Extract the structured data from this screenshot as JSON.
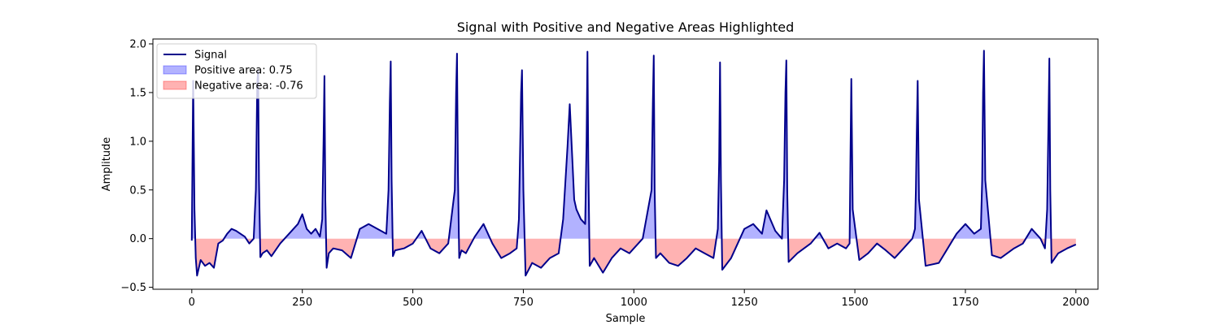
{
  "chart_data": {
    "type": "line",
    "title": "Signal with Positive and Negative Areas Highlighted",
    "xlabel": "Sample",
    "ylabel": "Amplitude",
    "xlim": [
      -88,
      2050
    ],
    "ylim": [
      -0.52,
      2.05
    ],
    "xticks": [
      0,
      250,
      500,
      750,
      1000,
      1250,
      1500,
      1750,
      2000
    ],
    "yticks": [
      -0.5,
      0.0,
      0.5,
      1.0,
      1.5,
      2.0
    ],
    "xtick_labels": [
      "0",
      "250",
      "500",
      "750",
      "1000",
      "1250",
      "1500",
      "1750",
      "2000"
    ],
    "ytick_labels": [
      "−0.5",
      "0.0",
      "0.5",
      "1.0",
      "1.5",
      "2.0"
    ],
    "grid": false,
    "legend_position": "top-left",
    "legend": [
      {
        "label": "Signal",
        "kind": "line",
        "color": "#00008b"
      },
      {
        "label": "Positive area: 0.75",
        "kind": "patch",
        "color": "#0000ff"
      },
      {
        "label": "Negative area: -0.76",
        "kind": "patch",
        "color": "#ff0000"
      }
    ],
    "series": [
      {
        "name": "Signal",
        "color": "#00008b",
        "x": [
          0,
          3,
          6,
          9,
          12,
          20,
          30,
          40,
          50,
          60,
          70,
          80,
          90,
          100,
          110,
          120,
          130,
          140,
          145,
          148,
          150,
          152,
          155,
          160,
          170,
          180,
          200,
          220,
          240,
          250,
          260,
          270,
          280,
          290,
          295,
          298,
          300,
          302,
          305,
          310,
          320,
          340,
          360,
          380,
          400,
          420,
          440,
          445,
          448,
          450,
          452,
          455,
          460,
          480,
          500,
          520,
          540,
          560,
          580,
          595,
          598,
          600,
          602,
          605,
          610,
          620,
          640,
          660,
          680,
          700,
          720,
          735,
          740,
          745,
          747,
          750,
          755,
          770,
          790,
          810,
          830,
          840,
          850,
          855,
          860,
          865,
          870,
          880,
          890,
          893,
          895,
          897,
          900,
          910,
          930,
          950,
          970,
          990,
          1000,
          1020,
          1040,
          1043,
          1045,
          1047,
          1050,
          1060,
          1080,
          1100,
          1120,
          1140,
          1160,
          1180,
          1190,
          1193,
          1195,
          1197,
          1200,
          1220,
          1250,
          1270,
          1290,
          1300,
          1320,
          1335,
          1340,
          1343,
          1345,
          1347,
          1350,
          1370,
          1400,
          1420,
          1440,
          1460,
          1480,
          1488,
          1490,
          1492,
          1495,
          1510,
          1530,
          1550,
          1570,
          1590,
          1610,
          1630,
          1636,
          1638,
          1640,
          1642,
          1645,
          1660,
          1690,
          1710,
          1730,
          1750,
          1770,
          1785,
          1788,
          1790,
          1792,
          1795,
          1810,
          1830,
          1860,
          1880,
          1900,
          1920,
          1930,
          1935,
          1938,
          1940,
          1942,
          1945,
          1960,
          1980,
          2000
        ],
        "y": [
          -0.02,
          1.62,
          0.3,
          -0.2,
          -0.38,
          -0.22,
          -0.28,
          -0.25,
          -0.3,
          -0.05,
          -0.02,
          0.05,
          0.1,
          0.08,
          0.05,
          0.02,
          -0.05,
          0.0,
          0.5,
          1.6,
          1.72,
          0.6,
          -0.19,
          -0.15,
          -0.12,
          -0.18,
          -0.05,
          0.05,
          0.15,
          0.25,
          0.1,
          0.05,
          0.1,
          0.02,
          0.2,
          1.0,
          1.67,
          0.4,
          -0.3,
          -0.15,
          -0.1,
          -0.12,
          -0.2,
          0.1,
          0.15,
          0.1,
          0.05,
          0.5,
          1.4,
          1.82,
          0.6,
          -0.18,
          -0.12,
          -0.1,
          -0.05,
          0.08,
          -0.1,
          -0.15,
          -0.05,
          0.5,
          1.5,
          1.9,
          0.7,
          -0.2,
          -0.12,
          -0.15,
          0.02,
          0.15,
          -0.05,
          -0.2,
          -0.15,
          -0.1,
          0.2,
          1.5,
          1.73,
          0.5,
          -0.38,
          -0.25,
          -0.3,
          -0.2,
          -0.15,
          0.2,
          0.95,
          1.38,
          0.9,
          0.4,
          0.3,
          0.2,
          0.15,
          1.0,
          1.92,
          0.8,
          -0.28,
          -0.2,
          -0.35,
          -0.2,
          -0.1,
          -0.15,
          -0.1,
          0.0,
          0.5,
          1.4,
          1.88,
          0.5,
          -0.2,
          -0.15,
          -0.25,
          -0.28,
          -0.2,
          -0.1,
          -0.15,
          -0.2,
          0.1,
          0.8,
          1.81,
          0.6,
          -0.32,
          -0.2,
          0.1,
          0.15,
          0.05,
          0.29,
          0.08,
          0.0,
          0.6,
          1.5,
          1.83,
          0.5,
          -0.24,
          -0.15,
          -0.05,
          0.06,
          -0.1,
          -0.05,
          -0.1,
          -0.05,
          0.8,
          1.64,
          0.3,
          -0.22,
          -0.15,
          -0.05,
          -0.12,
          -0.2,
          -0.1,
          0.0,
          0.1,
          0.5,
          1.1,
          1.62,
          0.4,
          -0.28,
          -0.25,
          -0.1,
          0.05,
          0.15,
          0.05,
          0.1,
          0.6,
          1.5,
          1.93,
          0.6,
          -0.17,
          -0.2,
          -0.1,
          -0.05,
          0.1,
          0.0,
          -0.1,
          0.3,
          1.2,
          1.85,
          0.5,
          -0.25,
          -0.15,
          -0.1,
          -0.06
        ]
      }
    ],
    "fill_positive": {
      "color": "#0000ff",
      "opacity": 0.3
    },
    "fill_negative": {
      "color": "#ff0000",
      "opacity": 0.3
    }
  }
}
